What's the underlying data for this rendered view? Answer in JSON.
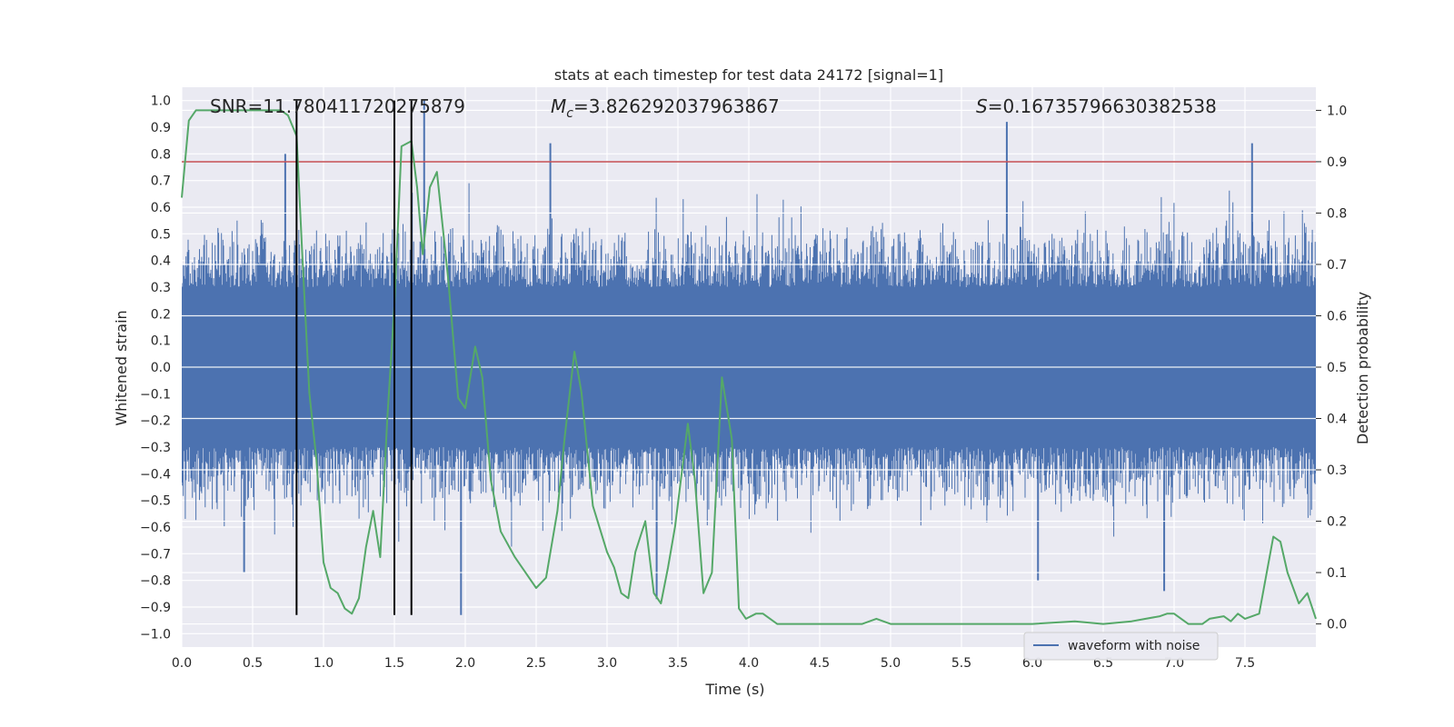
{
  "chart_data": {
    "type": "line",
    "title": "stats at each timestep for test data 24172 [signal=1]",
    "xlabel": "Time (s)",
    "ylabel_left": "Whitened strain",
    "ylabel_right": "Detection probability",
    "xlim": [
      0.0,
      8.0
    ],
    "ylim_left": [
      -1.05,
      1.05
    ],
    "ylim_right": [
      -0.045,
      1.045
    ],
    "x_ticks": [
      "0.0",
      "0.5",
      "1.0",
      "1.5",
      "2.0",
      "2.5",
      "3.0",
      "3.5",
      "4.0",
      "4.5",
      "5.0",
      "5.5",
      "6.0",
      "6.5",
      "7.0",
      "7.5"
    ],
    "y_left_ticks": [
      "1.0",
      "0.9",
      "0.8",
      "0.7",
      "0.6",
      "0.5",
      "0.4",
      "0.3",
      "0.2",
      "0.1",
      "0.0",
      "−0.1",
      "−0.2",
      "−0.3",
      "−0.4",
      "−0.5",
      "−0.6",
      "−0.7",
      "−0.8",
      "−0.9",
      "−1.0"
    ],
    "y_right_ticks": [
      "1.0",
      "0.9",
      "0.8",
      "0.7",
      "0.6",
      "0.5",
      "0.4",
      "0.3",
      "0.2",
      "0.1",
      "0.0"
    ],
    "grid": true,
    "legend": {
      "placement": "bottom-right",
      "entries": [
        "waveform with noise"
      ]
    },
    "annotations": {
      "snr": "SNR=11.780411720275879",
      "mc_symbol": "M",
      "mc_sub": "c",
      "mc_value": "=3.826292037963867",
      "s_symbol": "S",
      "s_value": "=0.16735796630382538"
    },
    "threshold_line": {
      "y_right": 0.9,
      "color": "#c44e52"
    },
    "vertical_lines": {
      "x": [
        0.81,
        1.5,
        1.62
      ],
      "y_range": [
        -0.93,
        1.0
      ],
      "color": "#000000"
    },
    "colors": {
      "waveform": "#4c72b0",
      "probability": "#55a868",
      "background": "#eaeaf2",
      "grid": "#ffffff"
    },
    "series": [
      {
        "name": "waveform with noise",
        "axis": "left",
        "style": "noise-band",
        "x_range": [
          0.0,
          8.0
        ],
        "samples": 1600,
        "band_core": [
          -0.3,
          0.3
        ],
        "typical_peak": 0.55,
        "spikes": [
          {
            "x": 1.71,
            "y": 1.0
          },
          {
            "x": 0.73,
            "y": 0.8
          },
          {
            "x": 2.6,
            "y": 0.84
          },
          {
            "x": 5.82,
            "y": 0.92
          },
          {
            "x": 7.55,
            "y": 0.84
          },
          {
            "x": 1.97,
            "y": -0.93
          },
          {
            "x": 3.35,
            "y": -0.87
          },
          {
            "x": 6.04,
            "y": -0.8
          },
          {
            "x": 6.93,
            "y": -0.84
          },
          {
            "x": 0.44,
            "y": -0.77
          }
        ]
      },
      {
        "name": "",
        "axis": "right",
        "style": "line",
        "x": [
          0.0,
          0.05,
          0.1,
          0.2,
          0.3,
          0.4,
          0.5,
          0.6,
          0.65,
          0.7,
          0.75,
          0.81,
          0.85,
          0.9,
          0.95,
          1.0,
          1.05,
          1.1,
          1.15,
          1.2,
          1.25,
          1.3,
          1.35,
          1.4,
          1.45,
          1.5,
          1.55,
          1.62,
          1.66,
          1.7,
          1.75,
          1.8,
          1.88,
          1.95,
          2.0,
          2.07,
          2.12,
          2.18,
          2.25,
          2.35,
          2.5,
          2.57,
          2.65,
          2.7,
          2.77,
          2.82,
          2.9,
          3.0,
          3.05,
          3.1,
          3.15,
          3.2,
          3.27,
          3.33,
          3.38,
          3.43,
          3.48,
          3.57,
          3.62,
          3.68,
          3.74,
          3.81,
          3.88,
          3.93,
          3.98,
          4.05,
          4.1,
          4.2,
          4.5,
          4.8,
          4.9,
          5.0,
          5.5,
          6.0,
          6.3,
          6.5,
          6.7,
          6.8,
          6.9,
          6.95,
          7.0,
          7.1,
          7.2,
          7.25,
          7.35,
          7.4,
          7.45,
          7.5,
          7.6,
          7.7,
          7.75,
          7.8,
          7.88,
          7.94,
          8.0
        ],
        "y": [
          0.83,
          0.98,
          1.0,
          1.0,
          1.0,
          1.0,
          1.0,
          1.0,
          1.0,
          1.0,
          0.99,
          0.95,
          0.72,
          0.45,
          0.32,
          0.12,
          0.07,
          0.06,
          0.03,
          0.02,
          0.05,
          0.15,
          0.22,
          0.13,
          0.4,
          0.62,
          0.93,
          0.94,
          0.85,
          0.72,
          0.85,
          0.88,
          0.67,
          0.44,
          0.42,
          0.54,
          0.48,
          0.28,
          0.18,
          0.13,
          0.07,
          0.09,
          0.22,
          0.36,
          0.53,
          0.45,
          0.23,
          0.14,
          0.11,
          0.06,
          0.05,
          0.14,
          0.2,
          0.06,
          0.04,
          0.11,
          0.19,
          0.39,
          0.28,
          0.06,
          0.1,
          0.48,
          0.36,
          0.03,
          0.01,
          0.02,
          0.02,
          0.0,
          0.0,
          0.0,
          0.01,
          0.0,
          0.0,
          0.0,
          0.005,
          0.0,
          0.005,
          0.01,
          0.015,
          0.02,
          0.02,
          0.0,
          0.0,
          0.01,
          0.015,
          0.005,
          0.02,
          0.01,
          0.02,
          0.17,
          0.16,
          0.1,
          0.04,
          0.06,
          0.01
        ]
      }
    ]
  }
}
